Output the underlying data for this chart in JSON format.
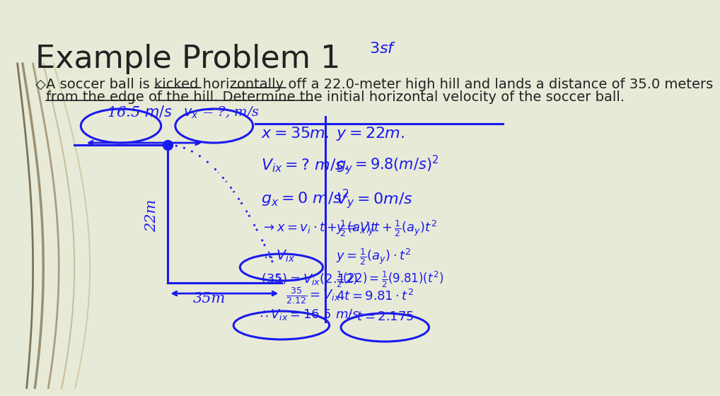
{
  "title": "Example Problem 1",
  "bullet_text_line1": "A soccer ball is kicked horizontally off a 22.0-meter high hill and lands a distance of 35.0 meters",
  "bullet_text_line2": "from the edge of the hill. Determine the initial horizontal velocity of the soccer ball.",
  "bg_color_top": "#e8ead8",
  "bg_color_bottom": "#f0f2e4",
  "title_fontsize": 32,
  "bullet_fontsize": 14,
  "ink_color": "#1a1aee",
  "title_color": "#222222",
  "bullet_color": "#222222"
}
